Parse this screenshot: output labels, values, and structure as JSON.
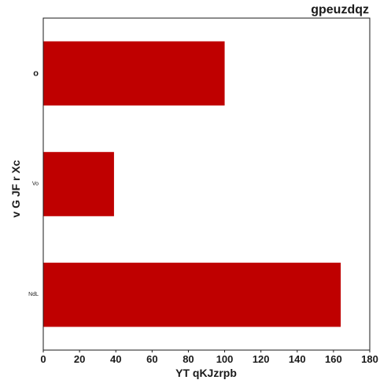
{
  "chart_data": {
    "type": "bar",
    "orientation": "horizontal",
    "title": "gpeuzdqz",
    "xlabel": "YT qKJzrpb",
    "ylabel": "v G JF r Xc",
    "categories": [
      "o",
      "Vo",
      "NdL"
    ],
    "values": [
      100,
      39,
      164
    ],
    "xlim": [
      0,
      180
    ],
    "xticks": [
      0,
      20,
      40,
      60,
      80,
      100,
      120,
      140,
      160,
      180
    ],
    "category_label_sizes": [
      "large",
      "small",
      "small"
    ],
    "bar_color": "#bf0000",
    "grid": false,
    "legend": "none"
  }
}
